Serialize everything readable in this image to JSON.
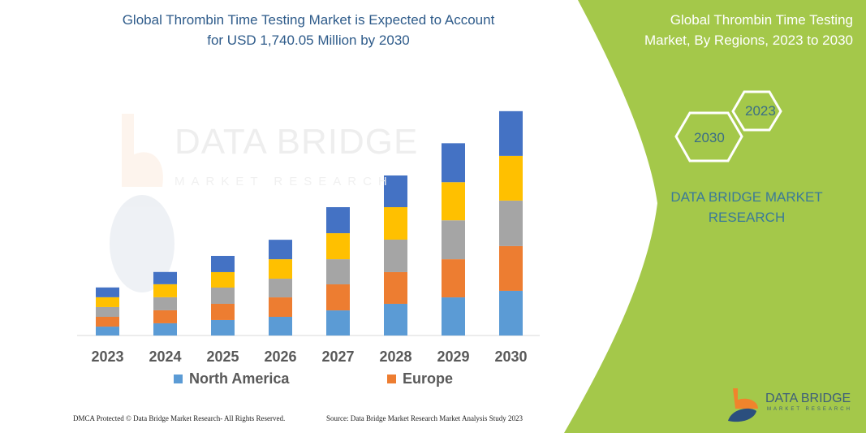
{
  "title": {
    "line1": "Global Thrombin Time Testing Market is Expected to Account",
    "line2": "for USD 1,740.05 Million by 2030"
  },
  "right_panel": {
    "title_line1": "Global Thrombin Time Testing",
    "title_line2": "Market, By Regions, 2023 to 2030",
    "hex_a": "2023",
    "hex_b": "2030",
    "brand_line1": "DATA BRIDGE MARKET",
    "brand_line2": "RESEARCH",
    "logo_text": "DATA BRIDGE",
    "logo_sub": "MARKET RESEARCH",
    "color": "#a4c84a"
  },
  "watermark": {
    "line1": "DATA BRIDGE",
    "line2": "MARKET RESEARCH"
  },
  "footer": {
    "left": "DMCA Protected © Data Bridge Market Research-  All Rights Reserved.",
    "right": "Source: Data Bridge Market Research  Market Analysis Study 2023"
  },
  "chart_data": {
    "type": "bar",
    "stacked": true,
    "categories": [
      "2023",
      "2024",
      "2025",
      "2026",
      "2027",
      "2028",
      "2029",
      "2030"
    ],
    "series": [
      {
        "name": "North America",
        "color": "#5b9bd5",
        "values": [
          69,
          95,
          120,
          145,
          195,
          246,
          296,
          347
        ]
      },
      {
        "name": "Europe",
        "color": "#ed7d31",
        "values": [
          76,
          101,
          126,
          151,
          202,
          246,
          296,
          347
        ]
      },
      {
        "color": "#a5a5a5",
        "values": [
          76,
          101,
          126,
          145,
          195,
          252,
          302,
          353
        ]
      },
      {
        "color": "#ffc000",
        "values": [
          76,
          101,
          120,
          151,
          202,
          252,
          296,
          347
        ]
      },
      {
        "color": "#4472c4",
        "values": [
          76,
          95,
          126,
          151,
          202,
          246,
          302,
          347
        ]
      }
    ],
    "ylim": [
      0,
      1740
    ],
    "grid": false,
    "legend": "bottom"
  }
}
